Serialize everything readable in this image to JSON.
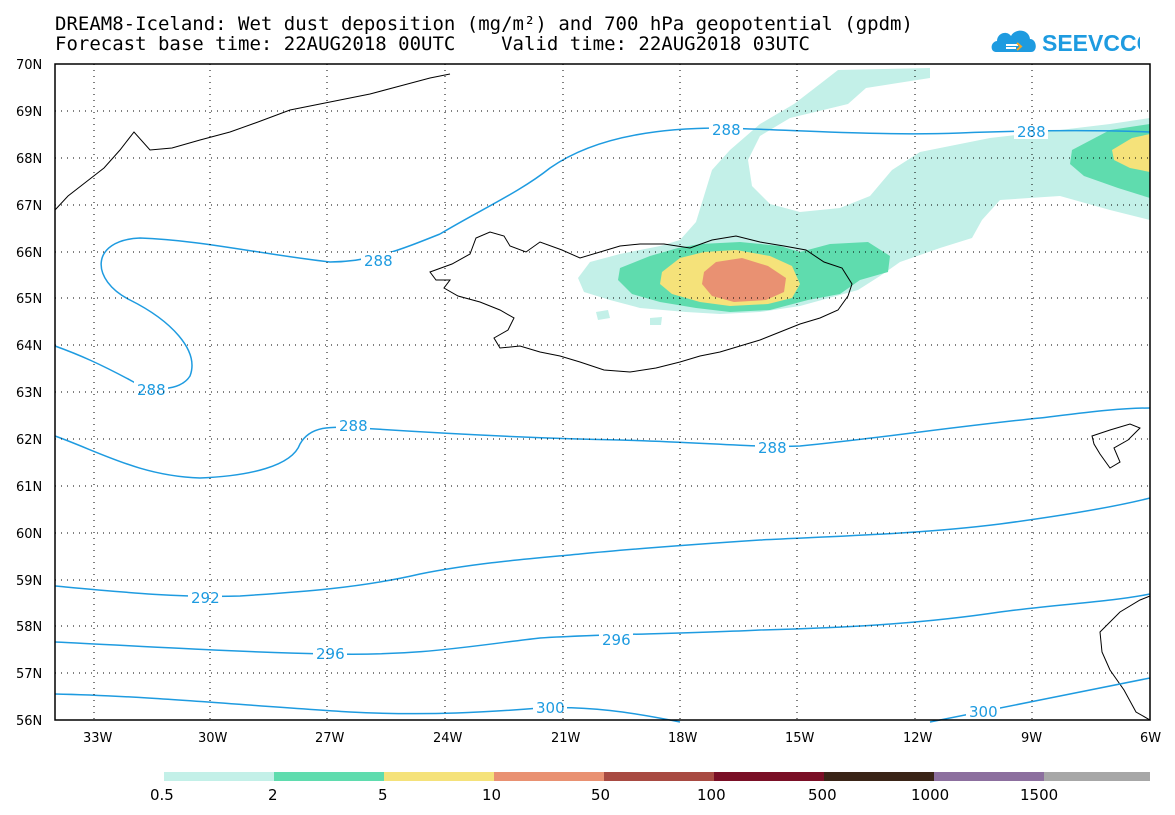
{
  "title": {
    "line1": "DREAM8-Iceland: Wet dust deposition (mg/m²) and 700 hPa geopotential (gpdm)",
    "line2": "Forecast base time: 22AUG2018 00UTC    Valid time: 22AUG2018 03UTC"
  },
  "logo": {
    "text": "SEEVCCC",
    "icon": "cloud-icon",
    "color": "#1e9be0"
  },
  "axes": {
    "lat_labels": [
      "70N",
      "69N",
      "68N",
      "67N",
      "66N",
      "65N",
      "64N",
      "63N",
      "62N",
      "61N",
      "60N",
      "59N",
      "58N",
      "57N",
      "56N"
    ],
    "lon_labels": [
      "33W",
      "30W",
      "27W",
      "24W",
      "21W",
      "18W",
      "15W",
      "12W",
      "9W",
      "6W"
    ],
    "grid": "dotted"
  },
  "contours": {
    "color": "#1e9be0",
    "labels": [
      "288",
      "288",
      "288",
      "288",
      "288",
      "288",
      "292",
      "296",
      "296",
      "300",
      "300"
    ]
  },
  "colorbar": {
    "colors": [
      "#c3f0e8",
      "#5fdcae",
      "#f5e27a",
      "#e99172",
      "#a84a42",
      "#7a0f26",
      "#3a2417",
      "#8c6f9e",
      "#a7a7a7"
    ],
    "labels": [
      "0.5",
      "2",
      "5",
      "10",
      "50",
      "100",
      "500",
      "1000",
      "1500"
    ]
  },
  "legend_placement": "bottom",
  "coastline_color": "#000000"
}
